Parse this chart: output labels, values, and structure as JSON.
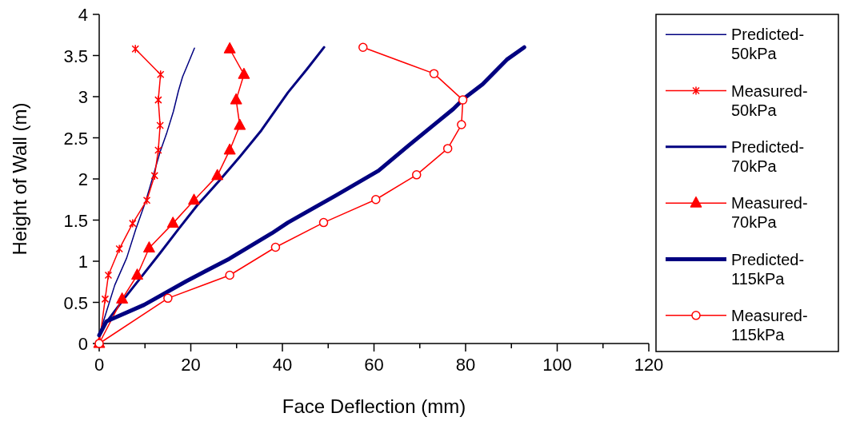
{
  "chart_data": {
    "type": "line",
    "xlabel": "Face Deflection (mm)",
    "ylabel": "Height of Wall (m)",
    "xlim": [
      0,
      120
    ],
    "ylim": [
      0,
      4
    ],
    "xticks": [
      0,
      {
        "value": 10,
        "label": null
      },
      20,
      {
        "value": 30,
        "label": null
      },
      40,
      {
        "value": 50,
        "label": null
      },
      60,
      {
        "value": 70,
        "label": null
      },
      80,
      {
        "value": 90,
        "label": null
      },
      100,
      {
        "value": 110,
        "label": null
      },
      120
    ],
    "yticks": [
      0,
      0.5,
      1,
      1.5,
      2,
      2.5,
      3,
      3.5,
      4
    ],
    "grid": false,
    "legend": "right",
    "series": [
      {
        "name": "Predicted-50kPa",
        "color": "#000080",
        "marker": "none",
        "x": [
          0,
          1.6,
          3.4,
          6.0,
          8.0,
          10.1,
          11.8,
          13.3,
          14.7,
          16.2,
          17.3,
          18.2,
          19.4,
          20.8
        ],
        "values": [
          0.1,
          0.39,
          0.71,
          1.04,
          1.39,
          1.72,
          2.04,
          2.33,
          2.55,
          2.82,
          3.07,
          3.24,
          3.4,
          3.59
        ]
      },
      {
        "name": "Measured-50kPa",
        "color": "#ff0000",
        "marker": "cross",
        "x": [
          7.9,
          13.4,
          12.9,
          13.3,
          12.9,
          12.1,
          10.4,
          7.3,
          4.4,
          2.0,
          1.3,
          0
        ],
        "values": [
          3.58,
          3.27,
          2.96,
          2.65,
          2.35,
          2.04,
          1.74,
          1.46,
          1.15,
          0.83,
          0.54,
          0
        ]
      },
      {
        "name": "Predicted-70kPa",
        "color": "#000080",
        "marker": "none",
        "x": [
          0,
          1.6,
          5.1,
          9.2,
          13.3,
          17.3,
          21.4,
          26.1,
          30.7,
          35.4,
          41.2,
          45.3,
          49.1
        ],
        "values": [
          0.1,
          0.26,
          0.52,
          0.81,
          1.1,
          1.39,
          1.68,
          1.97,
          2.27,
          2.59,
          3.05,
          3.33,
          3.6
        ]
      },
      {
        "name": "Measured-70kPa",
        "color": "#ff0000",
        "marker": "triangle",
        "x": [
          28.5,
          31.6,
          29.9,
          30.7,
          28.5,
          25.8,
          20.7,
          16.1,
          10.9,
          8.3,
          5.0,
          0
        ],
        "values": [
          3.58,
          3.27,
          2.96,
          2.65,
          2.35,
          2.04,
          1.74,
          1.46,
          1.16,
          0.83,
          0.54,
          0
        ]
      },
      {
        "name": "Predicted-115kPa",
        "color": "#000080",
        "marker": "none",
        "x": [
          0,
          1.6,
          9.8,
          19.1,
          28.4,
          37.7,
          41.2,
          51.7,
          61.0,
          67.4,
          73.8,
          77.3,
          79.7,
          83.7,
          89.0,
          92.8
        ],
        "values": [
          0.1,
          0.27,
          0.47,
          0.76,
          1.03,
          1.34,
          1.47,
          1.8,
          2.1,
          2.4,
          2.69,
          2.85,
          2.98,
          3.15,
          3.45,
          3.6
        ]
      },
      {
        "name": "Measured-115kPa",
        "color": "#ff0000",
        "marker": "circle",
        "x": [
          57.6,
          73.1,
          79.4,
          79.1,
          76.1,
          69.3,
          60.4,
          49.0,
          38.5,
          28.5,
          15.0,
          0
        ],
        "values": [
          3.6,
          3.28,
          2.96,
          2.66,
          2.37,
          2.05,
          1.75,
          1.47,
          1.17,
          0.83,
          0.55,
          0
        ]
      }
    ]
  }
}
